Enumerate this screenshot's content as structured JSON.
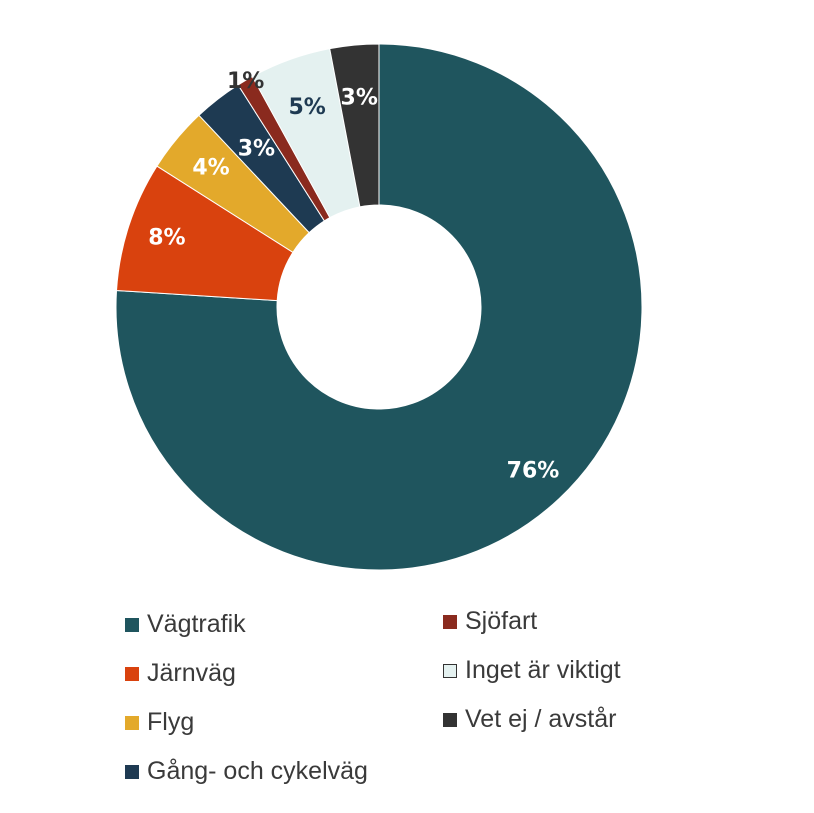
{
  "chart_data": {
    "type": "pie",
    "donut": true,
    "categories": [
      "Vägtrafik",
      "Järnväg",
      "Flyg",
      "Gång- och cykelväg",
      "Sjöfart",
      "Inget är viktigt",
      "Vet ej / avstår"
    ],
    "values": [
      76,
      8,
      4,
      3,
      1,
      5,
      3
    ],
    "value_labels": [
      "76%",
      "8%",
      "4%",
      "3%",
      "1%",
      "5%",
      "3%"
    ],
    "colors": [
      "#1f555e",
      "#d9420e",
      "#e3a92b",
      "#1e3a52",
      "#8a2a1e",
      "#e4f1f0",
      "#333333"
    ],
    "label_colors": [
      "#ffffff",
      "#ffffff",
      "#ffffff",
      "#ffffff",
      "#333333",
      "#1e3a52",
      "#ffffff"
    ],
    "start": "12 o'clock",
    "direction": "clockwise",
    "legend": "bottom, two columns",
    "title": ""
  },
  "legend": [
    {
      "label": "Vägtrafik",
      "color": "#1f555e"
    },
    {
      "label": "Järnväg",
      "color": "#d9420e"
    },
    {
      "label": "Flyg",
      "color": "#e3a92b"
    },
    {
      "label": "Gång- och cykelväg",
      "color": "#1e3a52"
    },
    {
      "label": "Sjöfart",
      "color": "#8a2a1e"
    },
    {
      "label": "Inget är viktigt",
      "color": "#e4f1f0"
    },
    {
      "label": "Vet ej / avstår",
      "color": "#333333"
    }
  ]
}
